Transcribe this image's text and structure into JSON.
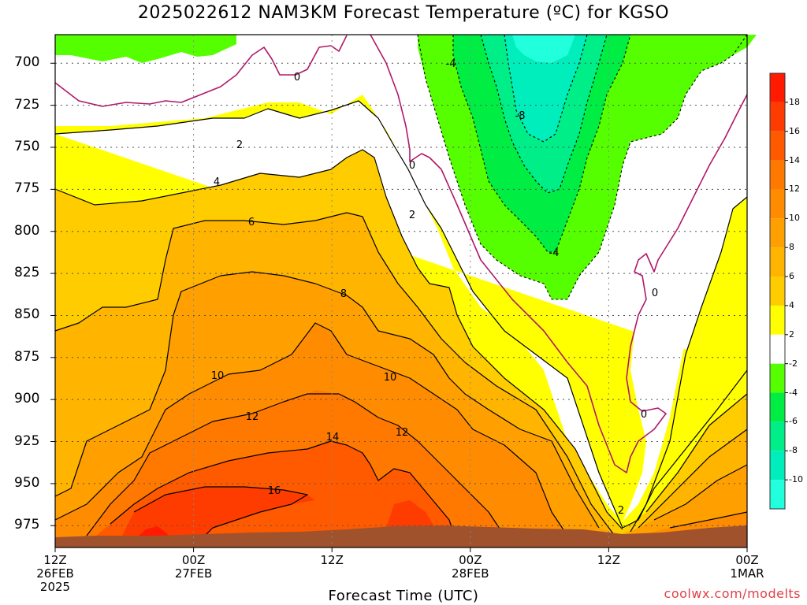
{
  "title": "2025022612 NAM3KM Forecast Temperature (ºC) for KGSO",
  "xaxis_title": "Forecast Time (UTC)",
  "credit": "coolwx.com/modelts",
  "y_ticks": [
    "700",
    "725",
    "750",
    "775",
    "800",
    "825",
    "850",
    "875",
    "900",
    "925",
    "950",
    "975"
  ],
  "x_ticks": [
    {
      "line1": "12Z",
      "line2": "26FEB",
      "line3": "2025"
    },
    {
      "line1": "00Z",
      "line2": "27FEB",
      "line3": ""
    },
    {
      "line1": "12Z",
      "line2": "",
      "line3": ""
    },
    {
      "line1": "00Z",
      "line2": "28FEB",
      "line3": ""
    },
    {
      "line1": "12Z",
      "line2": "",
      "line3": ""
    },
    {
      "line1": "00Z",
      "line2": "1MAR",
      "line3": ""
    }
  ],
  "colorbar": {
    "labels": [
      "18",
      "16",
      "14",
      "12",
      "10",
      "8",
      "6",
      "4",
      "2",
      "-2",
      "-4",
      "-6",
      "-8",
      "-10"
    ],
    "colors": [
      "#ff1a00",
      "#ff3c00",
      "#ff5a00",
      "#ff7800",
      "#ff8c00",
      "#ffa000",
      "#ffb400",
      "#ffcc00",
      "#ffff00",
      "#ffffff",
      "#55ff00",
      "#00ee44",
      "#00ee88",
      "#00eebb",
      "#22ffdd"
    ]
  },
  "contour_labels": [
    "0",
    "2",
    "4",
    "6",
    "8",
    "10",
    "12",
    "14",
    "16",
    "-4",
    "-8"
  ],
  "chart_data": {
    "type": "contour",
    "title": "2025022612 NAM3KM Forecast Temperature (ºC) for KGSO",
    "xlabel": "Forecast Time (UTC)",
    "ylabel": "",
    "y_units": "hPa",
    "y_reversed": true,
    "x_ticks": [
      "12Z 26FEB 2025",
      "00Z 27FEB",
      "12Z",
      "00Z 28FEB",
      "12Z",
      "00Z 1MAR"
    ],
    "y_ticks": [
      700,
      725,
      750,
      775,
      800,
      825,
      850,
      875,
      900,
      925,
      950,
      975
    ],
    "contour_levels": [
      -10,
      -8,
      -6,
      -4,
      -2,
      0,
      2,
      4,
      6,
      8,
      10,
      12,
      14,
      16,
      18
    ],
    "labeled_contours": [
      0,
      2,
      4,
      6,
      8,
      10,
      12,
      14,
      16,
      -4,
      -8
    ],
    "grid": true
  }
}
